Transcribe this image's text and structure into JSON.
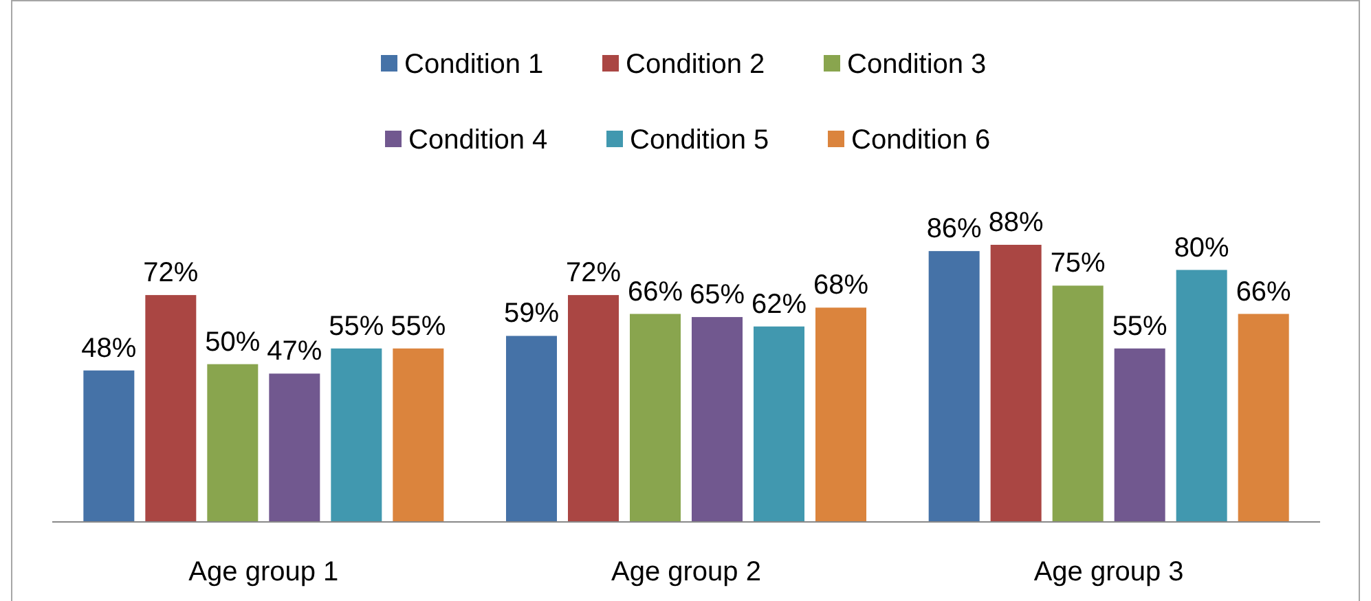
{
  "chart_data": {
    "type": "bar",
    "categories": [
      "Age group 1",
      "Age group 2",
      "Age group 3"
    ],
    "series": [
      {
        "name": "Condition 1",
        "color": "#4572a7",
        "values": [
          48,
          59,
          86
        ],
        "value_labels": [
          "48%",
          "59%",
          "86%"
        ]
      },
      {
        "name": "Condition 2",
        "color": "#aa4643",
        "values": [
          72,
          72,
          88
        ],
        "value_labels": [
          "72%",
          "72%",
          "88%"
        ]
      },
      {
        "name": "Condition 3",
        "color": "#89a54e",
        "values": [
          50,
          66,
          75
        ],
        "value_labels": [
          "50%",
          "66%",
          "75%"
        ]
      },
      {
        "name": "Condition 4",
        "color": "#71588f",
        "values": [
          47,
          65,
          55
        ],
        "value_labels": [
          "47%",
          "65%",
          "55%"
        ]
      },
      {
        "name": "Condition 5",
        "color": "#4198af",
        "values": [
          55,
          62,
          80
        ],
        "value_labels": [
          "55%",
          "62%",
          "80%"
        ]
      },
      {
        "name": "Condition 6",
        "color": "#db843d",
        "values": [
          55,
          68,
          66
        ],
        "value_labels": [
          "55%",
          "68%",
          "66%"
        ]
      }
    ],
    "legend": "top"
  }
}
